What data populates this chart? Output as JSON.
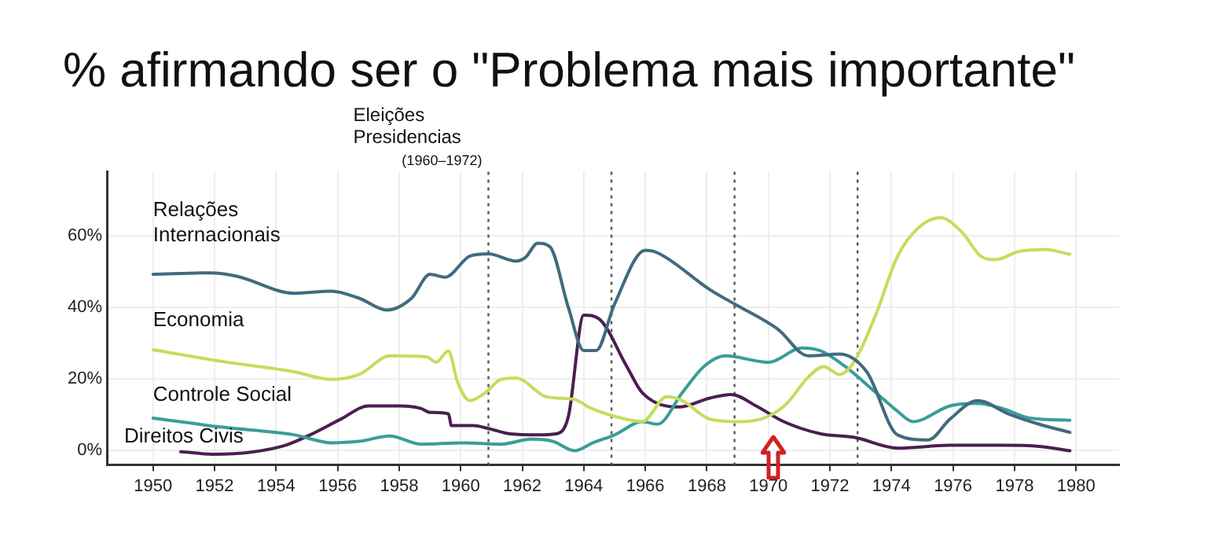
{
  "chart_data": {
    "type": "line",
    "title": "% afirmando ser o \"Problema mais importante\"",
    "xlim": [
      1948.5,
      1981.4
    ],
    "xticks": [
      1950,
      1952,
      1954,
      1956,
      1958,
      1960,
      1962,
      1964,
      1966,
      1968,
      1970,
      1972,
      1974,
      1976,
      1978,
      1980
    ],
    "ylim": [
      -4,
      78
    ],
    "yticks": [
      {
        "value": 0,
        "label": "0%"
      },
      {
        "value": 20,
        "label": "20%"
      },
      {
        "value": 40,
        "label": "40%"
      },
      {
        "value": 60,
        "label": "60%"
      }
    ],
    "grid": true,
    "legend": false,
    "marker": "none",
    "line_style": "solid",
    "ref_lines": [
      {
        "axis": "x",
        "value": 1960.9,
        "label": "Eleições Presidencias (1960–1972)",
        "line_style": "dotted",
        "color": "#555555"
      },
      {
        "axis": "x",
        "value": 1964.9,
        "label": null,
        "line_style": "dotted",
        "color": "#555555"
      },
      {
        "axis": "x",
        "value": 1968.9,
        "label": null,
        "line_style": "dotted",
        "color": "#555555"
      },
      {
        "axis": "x",
        "value": 1972.9,
        "label": null,
        "line_style": "dotted",
        "color": "#555555"
      }
    ],
    "series": [
      {
        "name": "Relações Internacionais",
        "color": "#416a7f",
        "x": [
          1950,
          1951.9,
          1952.7,
          1954.6,
          1955.8,
          1956.7,
          1957.6,
          1958.4,
          1959.0,
          1959.5,
          1960.3,
          1960.9,
          1961.8,
          1962.1,
          1962.5,
          1962.9,
          1963.5,
          1964.0,
          1964.4,
          1965.0,
          1966.0,
          1966.4,
          1968.1,
          1968.9,
          1970.3,
          1971.3,
          1972.3,
          1973.2,
          1974.2,
          1975.2,
          1975.9,
          1976.8,
          1977.8,
          1978.8,
          1979.8
        ],
        "values": [
          49.3,
          49.7,
          48.8,
          44,
          44.6,
          42.6,
          39.3,
          42.6,
          49.3,
          48.5,
          54.4,
          55,
          53,
          54,
          58,
          57,
          40,
          28,
          28,
          41,
          56,
          55.3,
          45,
          41,
          34,
          26.5,
          27,
          22,
          4.4,
          3,
          8.8,
          14,
          10.3,
          7.4,
          5.1
        ]
      },
      {
        "name": "Economia",
        "color": "#c6dc5c",
        "x": [
          1950,
          1952.2,
          1954.6,
          1955.8,
          1956.7,
          1957.7,
          1958.9,
          1959.2,
          1959.6,
          1959.9,
          1960.3,
          1960.8,
          1961.3,
          1961.8,
          1962.8,
          1963.7,
          1964.2,
          1965.0,
          1965.9,
          1966.7,
          1967.2,
          1968.1,
          1969.1,
          1970.0,
          1970.6,
          1971.3,
          1971.8,
          1972.3,
          1972.8,
          1973.5,
          1974.2,
          1974.9,
          1975.6,
          1976.3,
          1976.9,
          1977.4,
          1978.1,
          1979.0,
          1979.8
        ],
        "values": [
          28.2,
          25,
          22,
          19.9,
          21.3,
          26.5,
          26.2,
          24.7,
          27.9,
          19.1,
          14,
          16.2,
          19.9,
          20.3,
          15,
          14.3,
          12,
          9.6,
          8.1,
          15.1,
          14,
          8.8,
          8.1,
          9.6,
          13.2,
          20.6,
          23.5,
          21.3,
          25,
          38.2,
          54.4,
          62.5,
          65.1,
          61,
          54.4,
          53.4,
          55.6,
          56.2,
          54.9
        ]
      },
      {
        "name": "Controle Social",
        "color": "#3a9d98",
        "x": [
          1950,
          1952.2,
          1954.6,
          1955.8,
          1956.7,
          1957.7,
          1958.7,
          1960.1,
          1961.3,
          1962.3,
          1963.0,
          1963.7,
          1964.3,
          1965.0,
          1965.9,
          1966.4,
          1967.2,
          1967.9,
          1968.6,
          1970.0,
          1971.1,
          1971.7,
          1972.5,
          1973.5,
          1974.2,
          1974.7,
          1975.9,
          1976.8,
          1977.6,
          1978.5,
          1979.8
        ],
        "values": [
          9.1,
          6.6,
          4.4,
          2.2,
          2.6,
          4.1,
          1.8,
          2.2,
          1.8,
          3.2,
          2.6,
          0,
          2.2,
          4.4,
          8.1,
          7.4,
          16.2,
          23.5,
          26.5,
          24.7,
          28.7,
          27.9,
          23.5,
          16.2,
          11,
          8.1,
          12.5,
          13.2,
          11.8,
          9.1,
          8.5
        ]
      },
      {
        "name": "Direitos Civis",
        "color": "#4a1f50",
        "x": [
          1950.9,
          1952.0,
          1953.2,
          1954.3,
          1955.1,
          1956.1,
          1957.0,
          1958.0,
          1958.7,
          1959.0,
          1959.6,
          1959.7,
          1960.4,
          1960.9,
          1961.6,
          1962.5,
          1963.1,
          1963.5,
          1964.0,
          1964.5,
          1965.4,
          1965.9,
          1967.1,
          1968.1,
          1968.8,
          1969.6,
          1970.5,
          1971.7,
          1972.8,
          1974.2,
          1975.9,
          1977.6,
          1978.8,
          1979.8
        ],
        "values": [
          -0.3,
          -1,
          -0.4,
          1.5,
          4.4,
          8.8,
          12.5,
          12.5,
          11.8,
          10.7,
          10.3,
          7,
          7,
          6.2,
          4.7,
          4.4,
          4.7,
          9.6,
          37.9,
          36.8,
          23.5,
          16.2,
          12.2,
          14.7,
          15.7,
          12.5,
          8.1,
          4.7,
          3.7,
          0.7,
          1.5,
          1.5,
          1.2,
          0
        ]
      }
    ]
  }
}
